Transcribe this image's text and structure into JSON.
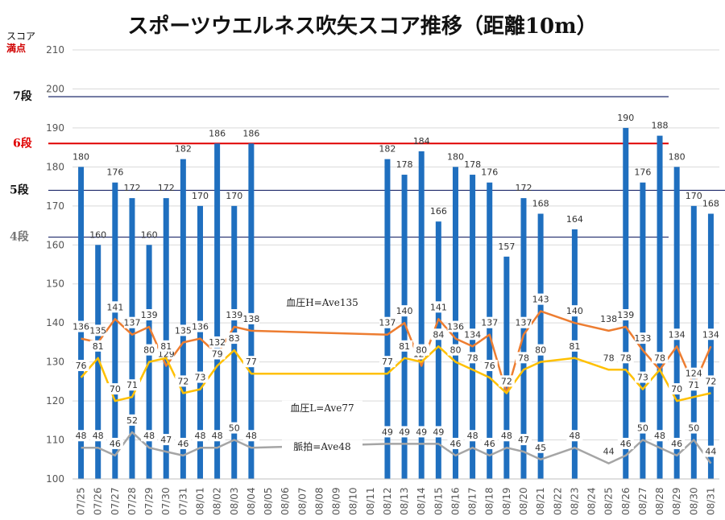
{
  "chart_data": {
    "type": "bar",
    "title": "スポーツウエルネス吹矢スコア推移（距離10m）",
    "ylabel": "スコア",
    "ylabel_sub": "満点",
    "ylim": [
      100,
      210
    ],
    "grid": true,
    "categories": [
      "07/25",
      "07/26",
      "07/27",
      "07/28",
      "07/29",
      "07/30",
      "07/31",
      "08/01",
      "08/02",
      "08/03",
      "08/04",
      "08/05",
      "08/06",
      "08/07",
      "08/08",
      "08/09",
      "08/10",
      "08/11",
      "08/12",
      "08/13",
      "08/14",
      "08/15",
      "08/16",
      "08/17",
      "08/18",
      "08/19",
      "08/20",
      "08/21",
      "08/22",
      "08/23",
      "08/24",
      "08/25",
      "08/26",
      "08/27",
      "08/28",
      "08/29",
      "08/30",
      "08/31"
    ],
    "series": [
      {
        "values": [
          180,
          160,
          176,
          172,
          160,
          172,
          182,
          170,
          186,
          170,
          186,
          null,
          null,
          null,
          null,
          null,
          null,
          null,
          182,
          178,
          184,
          166,
          180,
          178,
          176,
          157,
          172,
          168,
          null,
          164,
          null,
          null,
          190,
          176,
          188,
          180,
          170,
          168
        ],
        "color": "#1f6fbf"
      },
      {
        "values": [
          136,
          135,
          141,
          137,
          139,
          129,
          135,
          136,
          132,
          139,
          138,
          null,
          null,
          null,
          null,
          null,
          null,
          null,
          137,
          140,
          129,
          141,
          136,
          134,
          137,
          122,
          137,
          143,
          null,
          140,
          null,
          138,
          139,
          133,
          128,
          134,
          124,
          134
        ],
        "color": "#ed7d31"
      },
      {
        "values": [
          76,
          81,
          70,
          71,
          80,
          81,
          72,
          73,
          79,
          83,
          77,
          null,
          null,
          null,
          null,
          null,
          null,
          null,
          77,
          81,
          80,
          84,
          80,
          78,
          76,
          72,
          78,
          80,
          null,
          81,
          null,
          78,
          78,
          73,
          78,
          70,
          71,
          72
        ],
        "color": "#ffc000"
      },
      {
        "values": [
          48,
          48,
          46,
          52,
          48,
          47,
          46,
          48,
          48,
          50,
          48,
          null,
          null,
          null,
          null,
          null,
          null,
          null,
          49,
          49,
          49,
          49,
          46,
          48,
          46,
          48,
          47,
          45,
          null,
          48,
          null,
          44,
          46,
          50,
          48,
          46,
          50,
          44
        ],
        "color": "#a5a5a5"
      }
    ],
    "levels": [
      {
        "label": "7段",
        "value": 198,
        "color": "#1f2a6b"
      },
      {
        "label": "6段",
        "value": 186,
        "color": "#e00000"
      },
      {
        "label": "5段",
        "value": 174,
        "color": "#1f2a6b"
      },
      {
        "label": "4段",
        "value": 162,
        "color": "#1f2a6b"
      }
    ],
    "annotations": [
      {
        "text": "血圧H=Ave135",
        "y": 145
      },
      {
        "text": "血圧L=Ave77",
        "y": 118
      },
      {
        "text": "脈拍=Ave48",
        "y": 108
      }
    ]
  }
}
